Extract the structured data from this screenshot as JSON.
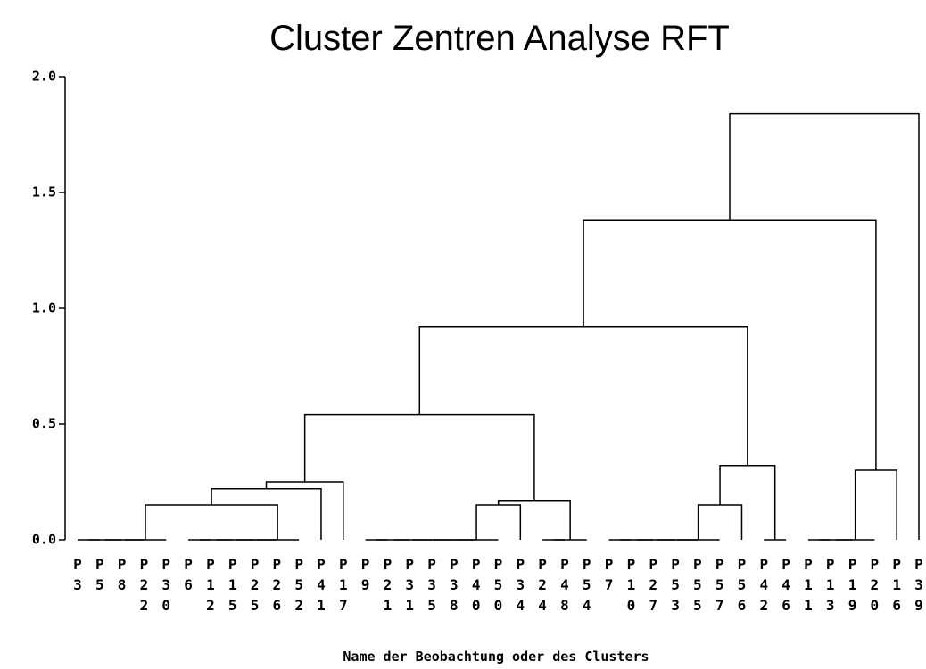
{
  "chart_data": {
    "type": "dendrogram",
    "title": "Cluster Zentren Analyse RFT",
    "x_label": "Name der Beobachtung oder des Clusters",
    "leaves": [
      "P3",
      "P5",
      "P8",
      "P22",
      "P30",
      "P6",
      "P12",
      "P15",
      "P25",
      "P26",
      "P52",
      "P41",
      "P17",
      "P9",
      "P21",
      "P31",
      "P35",
      "P38",
      "P40",
      "P50",
      "P34",
      "P24",
      "P48",
      "P54",
      "P7",
      "P10",
      "P27",
      "P53",
      "P55",
      "P57",
      "P56",
      "P42",
      "P46",
      "P11",
      "P13",
      "P19",
      "P20",
      "P16",
      "P39"
    ],
    "linkage": [
      [
        0,
        1,
        0
      ],
      [
        39,
        2,
        0
      ],
      [
        40,
        3,
        0
      ],
      [
        41,
        4,
        0
      ],
      [
        5,
        6,
        0
      ],
      [
        43,
        7,
        0
      ],
      [
        44,
        8,
        0
      ],
      [
        45,
        9,
        0
      ],
      [
        46,
        10,
        0
      ],
      [
        42,
        47,
        0.15
      ],
      [
        48,
        11,
        0.22
      ],
      [
        49,
        12,
        0.25
      ],
      [
        13,
        14,
        0
      ],
      [
        51,
        15,
        0
      ],
      [
        52,
        16,
        0
      ],
      [
        53,
        17,
        0
      ],
      [
        54,
        18,
        0
      ],
      [
        55,
        19,
        0
      ],
      [
        56,
        20,
        0.15
      ],
      [
        21,
        22,
        0
      ],
      [
        58,
        23,
        0
      ],
      [
        57,
        59,
        0.17
      ],
      [
        50,
        60,
        0.54
      ],
      [
        24,
        25,
        0
      ],
      [
        62,
        26,
        0
      ],
      [
        63,
        27,
        0
      ],
      [
        64,
        28,
        0
      ],
      [
        65,
        29,
        0
      ],
      [
        66,
        30,
        0.15
      ],
      [
        31,
        32,
        0
      ],
      [
        67,
        68,
        0.32
      ],
      [
        61,
        69,
        0.92
      ],
      [
        33,
        34,
        0
      ],
      [
        71,
        35,
        0
      ],
      [
        72,
        36,
        0
      ],
      [
        73,
        37,
        0.3
      ],
      [
        70,
        74,
        1.38
      ],
      [
        75,
        38,
        1.84
      ]
    ],
    "ylim": [
      0,
      2
    ],
    "yticks": [
      {
        "value": 0,
        "label": "0.0"
      },
      {
        "value": 0.5,
        "label": "0.5"
      },
      {
        "value": 1,
        "label": "1.0"
      },
      {
        "value": 1.5,
        "label": "1.5"
      },
      {
        "value": 2,
        "label": "2.0"
      }
    ],
    "color": "#000000"
  }
}
